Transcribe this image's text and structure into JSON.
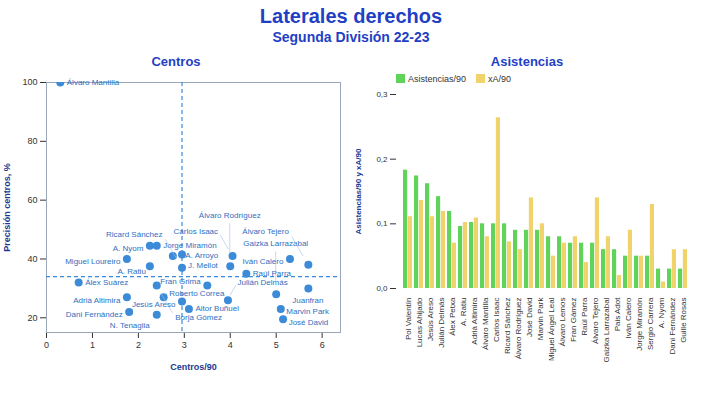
{
  "title": "Laterales derechos",
  "subtitle": "Segunda División 22-23",
  "chart_data": [
    {
      "type": "scatter",
      "title": "Centros",
      "x_label": "Centros/90",
      "y_label": "Precisión centros, %",
      "labels": [
        "Álvaro Mantilla",
        "Álex Suárez",
        "Adrià Altimira",
        "Dani Fernández",
        "Miguel Loureiro",
        "A. Nyom",
        "Jorge Miramón",
        "A. Arroyo",
        "A. Ratiu",
        "Borja Gómez",
        "Roberto Correa",
        "N. Tenaglia",
        "Aitor Buñuel",
        "Jesús Areso",
        "Fran Grima",
        "Julián Delmás",
        "Gaizka Larrazabal",
        "Juanfran",
        "Raúl Parra",
        "Álvaro Tejero",
        "Iván Calero",
        "Carlos Isaac",
        "Álvaro Rodríguez",
        "Marvin Park",
        "José David",
        "J. Mellot",
        "Ricard Sánchez"
      ],
      "x": [
        0.3,
        0.7,
        1.75,
        1.8,
        1.75,
        2.25,
        2.4,
        2.75,
        2.25,
        2.4,
        2.55,
        2.4,
        3.1,
        2.95,
        3.5,
        3.95,
        5.0,
        5.7,
        4.35,
        5.7,
        5.3,
        4.05,
        4.0,
        5.1,
        5.15,
        2.95,
        2.95
      ],
      "y": [
        100,
        32,
        27,
        22,
        40,
        44.5,
        44.5,
        41,
        37.5,
        31,
        27,
        21,
        23,
        25.5,
        31,
        26,
        28,
        30,
        35,
        38,
        40,
        41,
        37.5,
        23,
        19.5,
        41.5,
        37
      ],
      "color": "#3b8bd9",
      "xlim": [
        0,
        6.4
      ],
      "ylim": [
        15,
        100
      ],
      "xticks": [
        0,
        1,
        2,
        3,
        4,
        5,
        6
      ],
      "yticks": [
        20,
        40,
        60,
        80,
        100
      ],
      "grid": false,
      "reference_lines": {
        "x": 2.95,
        "y": 34
      }
    },
    {
      "type": "bar",
      "title": "Asistencias",
      "y_label": "Asistencias/90 y xA/90",
      "categories": [
        "Pol Valentín",
        "Lucas Ahijado",
        "Jesús Areso",
        "Julián Delmás",
        "Álex Petxa",
        "A. Ratiu",
        "Adrià Altimira",
        "Álvaro Mantilla",
        "Carlos Isaac",
        "Ricard Sánchez",
        "Álvaro Rodríguez",
        "José David",
        "Marvin Park",
        "Miguel Ángel Leal",
        "Álvaro Lemos",
        "Fran Gámez",
        "Raúl Parra",
        "Álvaro Tejero",
        "Gaizka Larrazabal",
        "Pais Adot",
        "Iván Calero",
        "Jorge Miramón",
        "Sergio Carrera",
        "A. Nyom",
        "Dani Fernández",
        "Guille Rosas"
      ],
      "series": [
        {
          "name": "Asistencias/90",
          "color": "#5fd35a",
          "values": [
            0.183,
            0.174,
            0.162,
            0.142,
            0.119,
            0.096,
            0.102,
            0.1,
            0.1,
            0.1,
            0.09,
            0.09,
            0.09,
            0.08,
            0.08,
            0.07,
            0.07,
            0.07,
            0.06,
            0.06,
            0.05,
            0.05,
            0.05,
            0.03,
            0.03,
            0.03
          ]
        },
        {
          "name": "xA/90",
          "color": "#f0d36a",
          "values": [
            0.111,
            0.136,
            0.111,
            0.119,
            0.07,
            0.102,
            0.109,
            0.08,
            0.264,
            0.072,
            0.06,
            0.14,
            0.1,
            0.05,
            0.07,
            0.08,
            0.04,
            0.14,
            0.08,
            0.02,
            0.09,
            0.05,
            0.13,
            0.01,
            0.06,
            0.06
          ]
        }
      ],
      "ylim": [
        0,
        0.3
      ],
      "yticks": [
        {
          "value": 0,
          "label": "0,0"
        },
        {
          "value": 0.1,
          "label": "0,1"
        },
        {
          "value": 0.2,
          "label": "0,2"
        },
        {
          "value": 0.3,
          "label": "0,3"
        }
      ],
      "grid": false,
      "legend": "top-left"
    }
  ]
}
